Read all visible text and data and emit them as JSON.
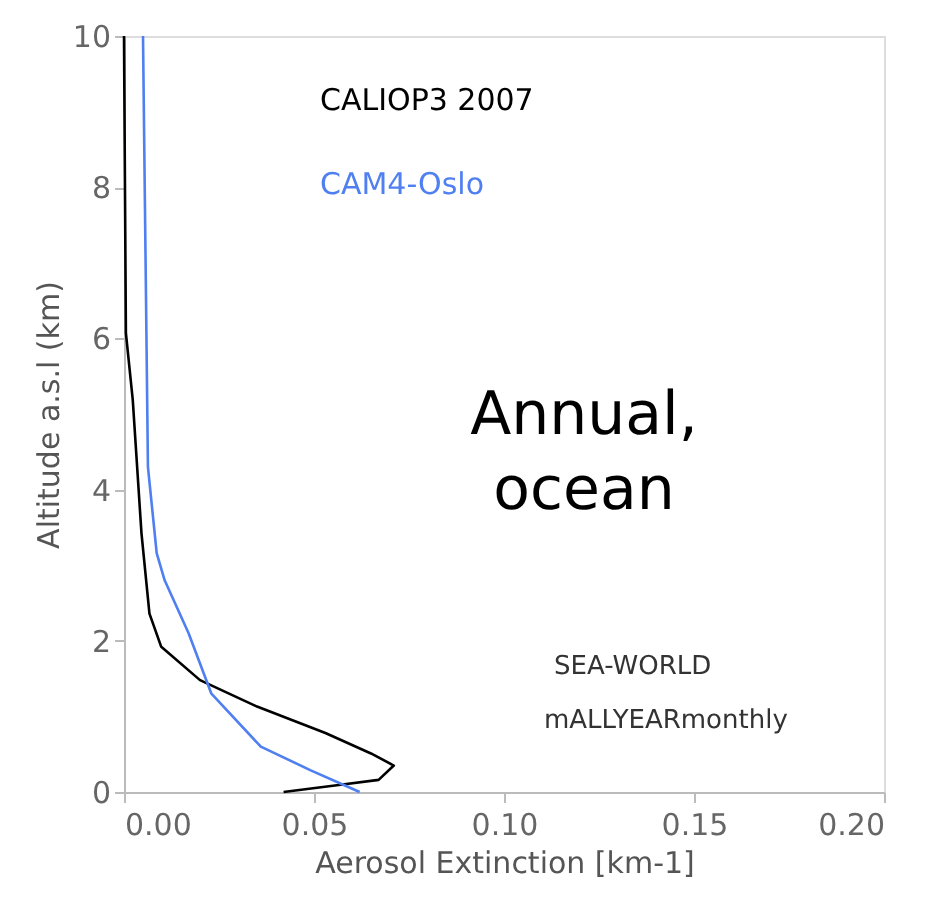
{
  "chart_data": {
    "type": "line",
    "xlabel": "Aerosol Extinction [km-1]",
    "ylabel": "Altitude a.s.l (km)",
    "xlim": [
      0,
      0.2
    ],
    "xticks": [
      {
        "value": 0,
        "label": "0.00"
      },
      {
        "value": 0.05,
        "label": "0.05"
      },
      {
        "value": 0.1,
        "label": "0.10"
      },
      {
        "value": 0.15,
        "label": "0.15"
      },
      {
        "value": 0.2,
        "label": "0.20"
      }
    ],
    "ylim": [
      0,
      10
    ],
    "yticks": [
      0,
      2,
      4,
      6,
      8,
      10
    ],
    "grid": false,
    "legend": "top",
    "series": [
      {
        "name": "CALIOP3 2007",
        "color": "#000000",
        "x": [
          0.0,
          0.0005,
          0.0023,
          0.0046,
          0.0067,
          0.0098,
          0.02,
          0.035,
          0.053,
          0.065,
          0.071,
          0.067,
          0.056,
          0.042
        ],
        "values": [
          10,
          6.07,
          5.19,
          3.42,
          2.36,
          1.92,
          1.48,
          1.13,
          0.78,
          0.51,
          0.35,
          0.16,
          0.09,
          0.0
        ]
      },
      {
        "name": "CAM4-Oslo",
        "color": "#4f7ff0",
        "x": [
          0.005,
          0.0063,
          0.0086,
          0.0107,
          0.017,
          0.023,
          0.036,
          0.049,
          0.058,
          0.062
        ],
        "values": [
          10,
          4.3,
          3.16,
          2.8,
          2.1,
          1.3,
          0.6,
          0.29,
          0.09,
          0.0
        ]
      }
    ],
    "annotations": [
      "Annual,\nocean",
      "SEA-WORLD",
      "mALLYEARmonthly"
    ]
  }
}
